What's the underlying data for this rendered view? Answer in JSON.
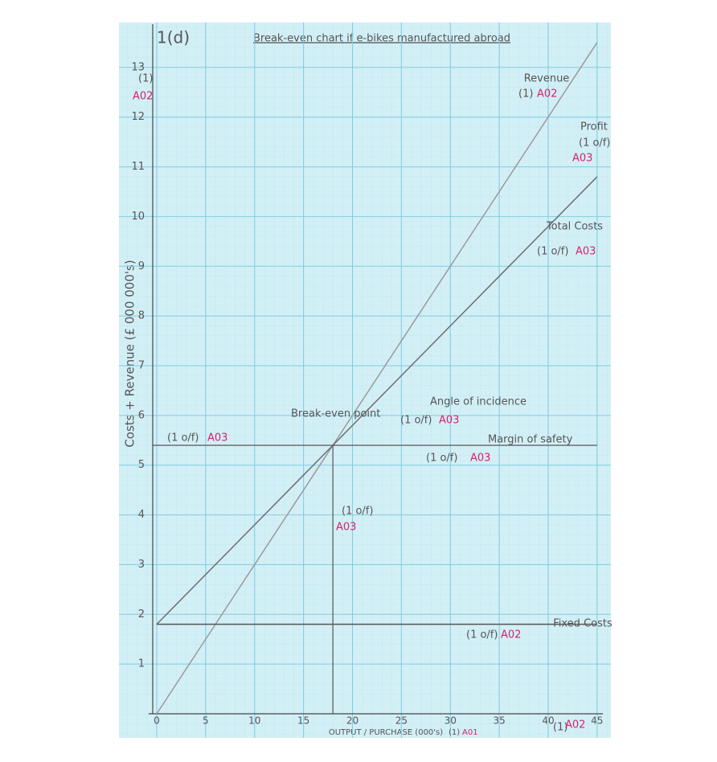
{
  "chart_data": {
    "type": "line",
    "label": "1(d)",
    "title": "Break-even chart if e-bikes manufactured abroad",
    "x_label": "OUTPUT / PURCHASE (000's)",
    "y_label": "Costs + Revenue (£ 000 000's)",
    "x": [
      0,
      45
    ],
    "series": [
      {
        "name": "Revenue",
        "color": "#9a9a9a",
        "values": [
          0,
          13.5
        ]
      },
      {
        "name": "Total Costs",
        "color": "#6e6e6e",
        "values": [
          1.8,
          10.8
        ]
      },
      {
        "name": "Fixed Costs",
        "color": "#555555",
        "values": [
          1.8,
          1.8
        ]
      }
    ],
    "break_even": {
      "x": 18,
      "y": 5.4
    },
    "xlim": [
      0,
      46
    ],
    "ylim": [
      0,
      14
    ],
    "xticks": [
      0,
      5,
      10,
      15,
      20,
      25,
      30,
      35,
      40,
      45
    ],
    "yticks": [
      1,
      2,
      3,
      4,
      5,
      6,
      7,
      8,
      9,
      10,
      11,
      12,
      13
    ],
    "grid": true,
    "annotations": [
      {
        "text": "(1)",
        "code": "A02"
      },
      {
        "text": "(1)",
        "code": "A02"
      },
      {
        "text": "(1 o/f)",
        "code": "A03"
      },
      {
        "text": "(1 o/f)",
        "code": "A03"
      },
      {
        "text": "Break-even point"
      },
      {
        "text": "(1 o/f)",
        "code": "A03"
      },
      {
        "text": "Angle of incidence"
      },
      {
        "text": "(1 o/f)",
        "code": "A03"
      },
      {
        "text": "Margin of safety"
      },
      {
        "text": "(1 o/f)",
        "code": "A03"
      },
      {
        "text": "(1 o/f)",
        "code": "A03"
      },
      {
        "text": "(1 o/f)",
        "code": "A02"
      },
      {
        "text": "(1)",
        "code": "A01"
      },
      {
        "text": "(1)",
        "code": "A02"
      },
      {
        "text": "Profit"
      }
    ]
  }
}
